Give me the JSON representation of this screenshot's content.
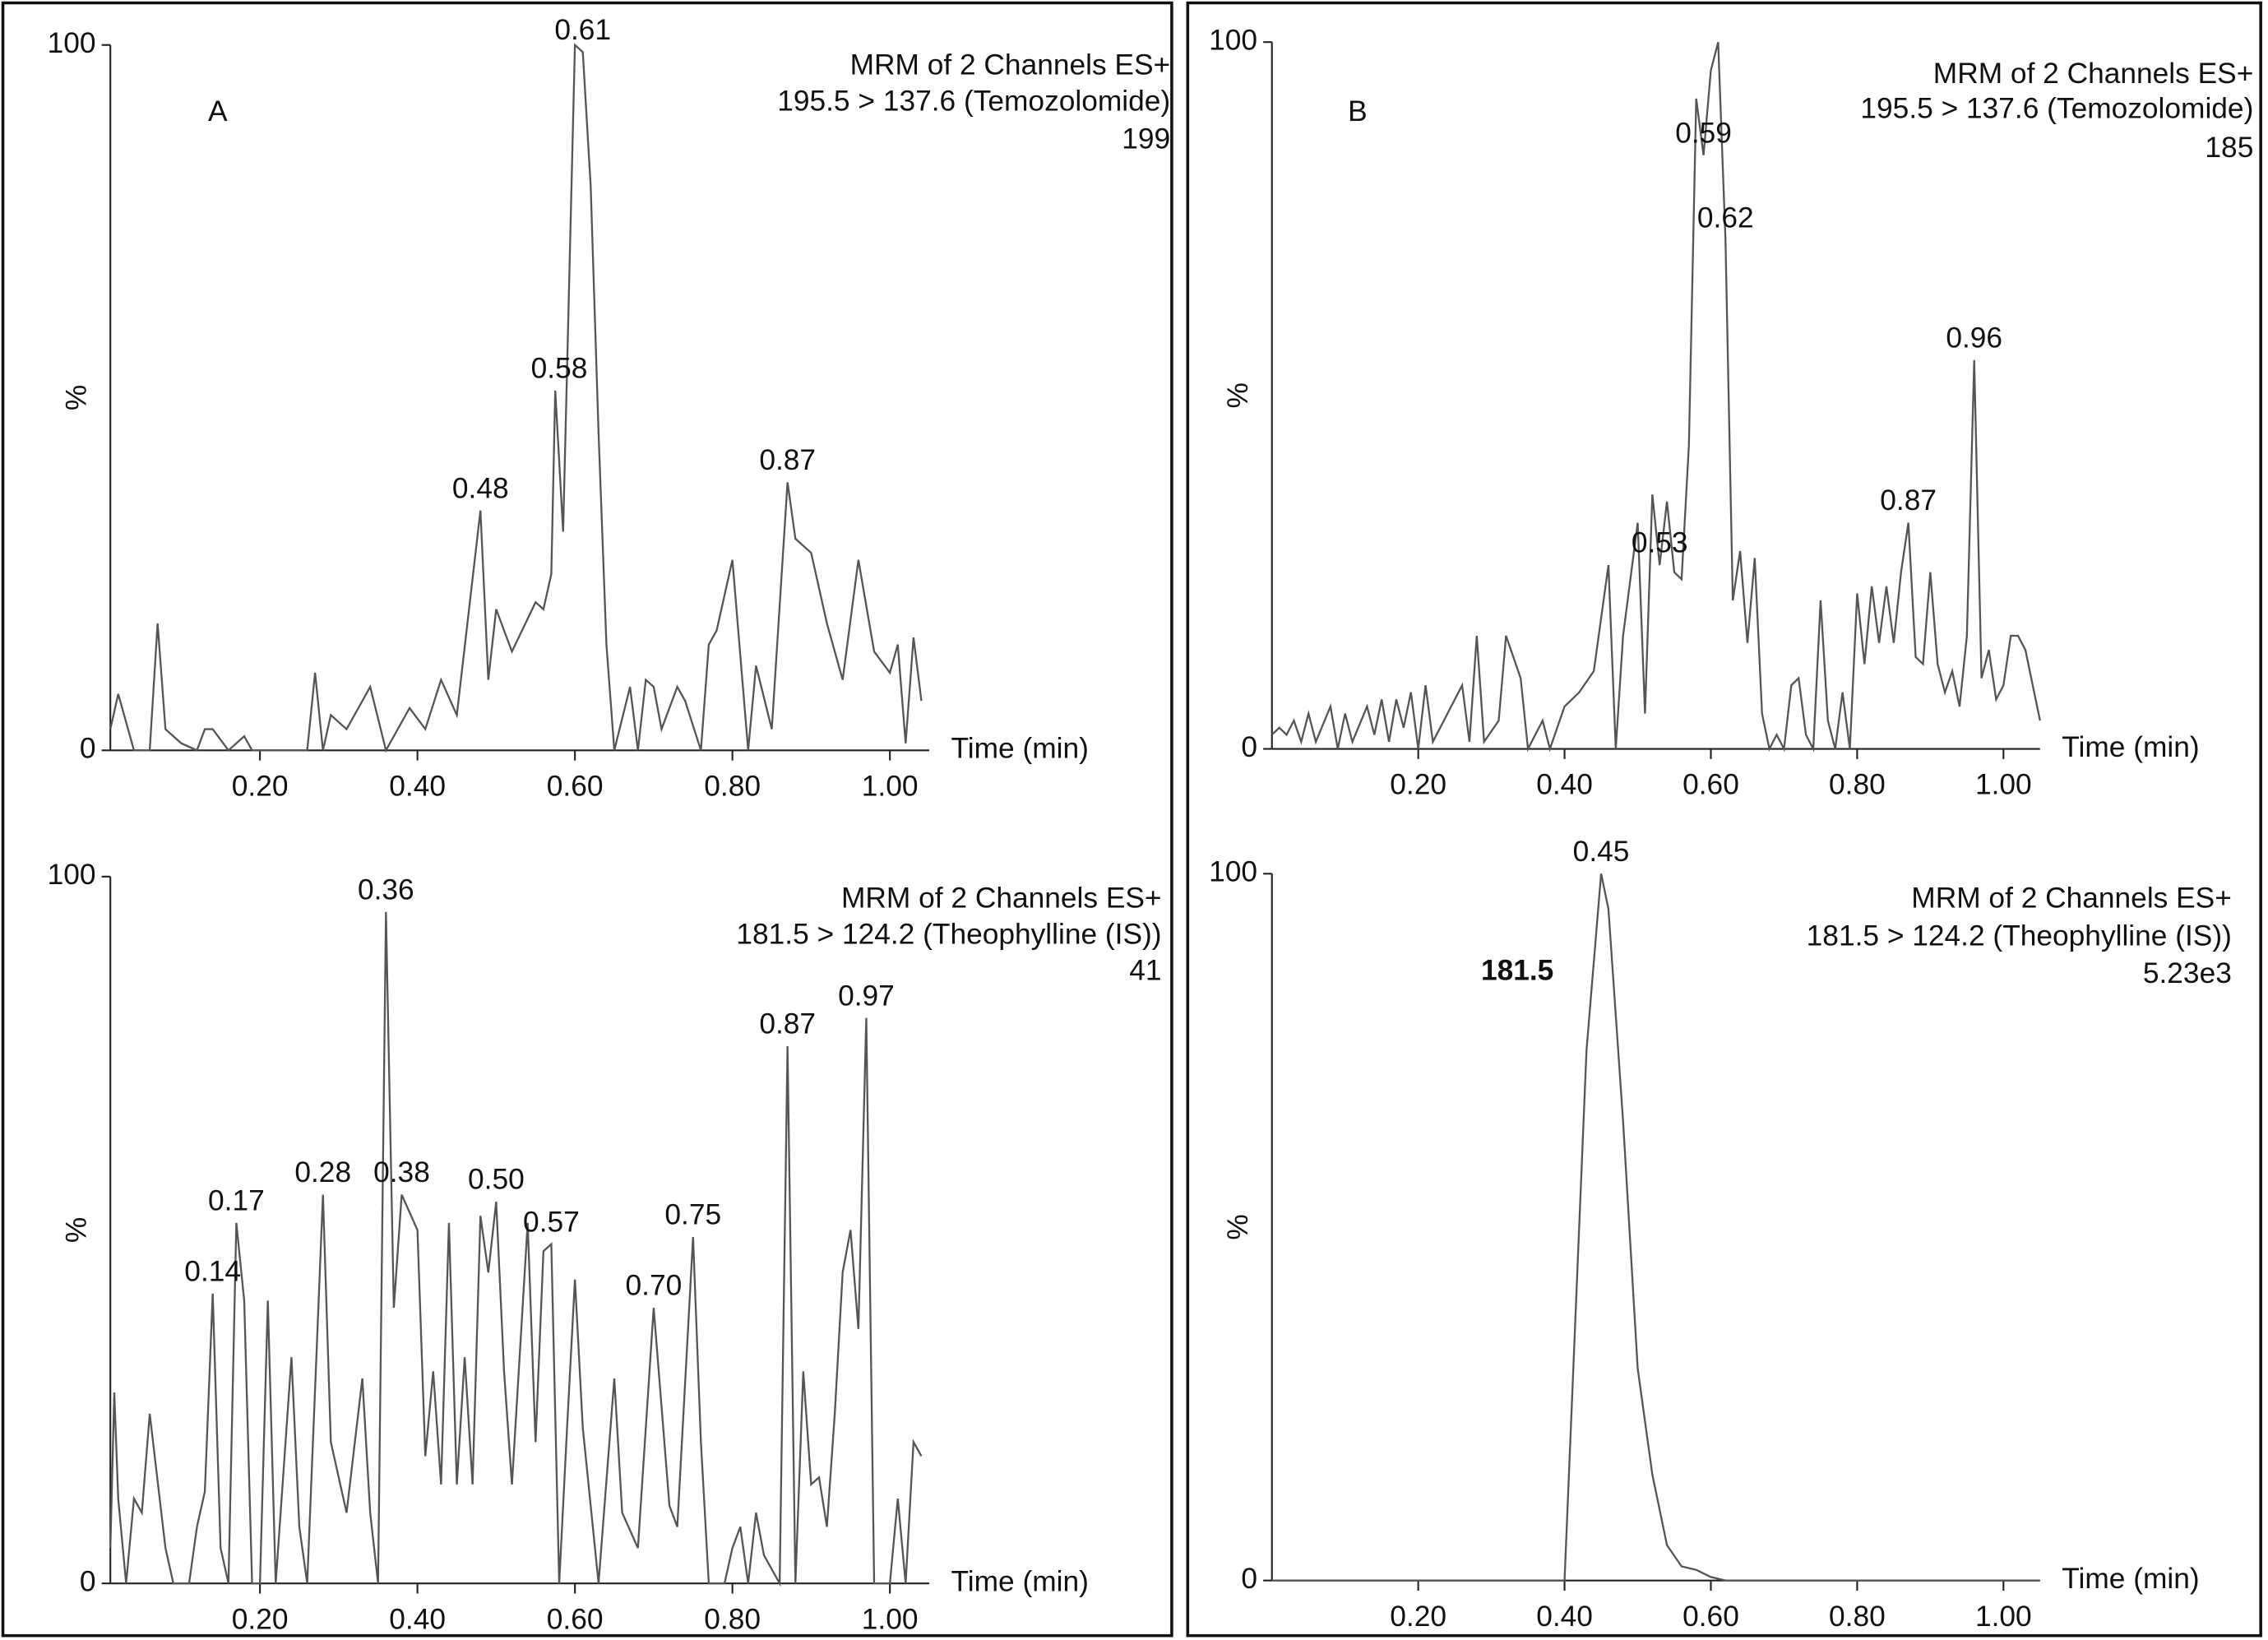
{
  "chart_data": [
    {
      "type": "line",
      "panel_label": "A",
      "info": [
        "MRM of 2 Channels ES+",
        "195.5 > 137.6 (Temozolomide)",
        "199"
      ],
      "xlabel": "Time (min)",
      "ylabel": "%",
      "xlim": [
        0.01,
        1.05
      ],
      "ylim": [
        0,
        100
      ],
      "xticks": [
        {
          "value": 0.2,
          "label": "0.20"
        },
        {
          "value": 0.4,
          "label": "0.40"
        },
        {
          "value": 0.6,
          "label": "0.60"
        },
        {
          "value": 0.8,
          "label": "0.80"
        },
        {
          "value": 1.0,
          "label": "1.00"
        }
      ],
      "yticks": [
        0,
        100
      ],
      "color": "#555555",
      "x": [
        0.01,
        0.02,
        0.04,
        0.06,
        0.07,
        0.08,
        0.1,
        0.12,
        0.13,
        0.14,
        0.16,
        0.18,
        0.19,
        0.26,
        0.27,
        0.28,
        0.29,
        0.31,
        0.34,
        0.36,
        0.39,
        0.41,
        0.43,
        0.45,
        0.48,
        0.49,
        0.5,
        0.52,
        0.55,
        0.56,
        0.57,
        0.575,
        0.585,
        0.6,
        0.61,
        0.62,
        0.63,
        0.64,
        0.65,
        0.67,
        0.68,
        0.69,
        0.7,
        0.71,
        0.73,
        0.74,
        0.76,
        0.77,
        0.78,
        0.8,
        0.82,
        0.83,
        0.85,
        0.87,
        0.88,
        0.9,
        0.92,
        0.94,
        0.96,
        0.98,
        1.0,
        1.01,
        1.02,
        1.03,
        1.04
      ],
      "values": [
        3,
        8,
        0,
        0,
        18,
        3,
        1,
        0,
        3,
        3,
        0,
        2,
        0,
        0,
        11,
        0,
        5,
        3,
        9,
        0,
        6,
        3,
        10,
        5,
        34,
        10,
        20,
        14,
        21,
        20,
        25,
        51,
        31,
        100,
        99,
        80,
        45,
        15,
        0,
        9,
        0,
        10,
        9,
        3,
        9,
        7,
        0,
        15,
        17,
        27,
        0,
        12,
        3,
        38,
        30,
        28,
        18,
        10,
        27,
        14,
        11,
        15,
        1,
        16,
        7
      ],
      "annotations": [
        {
          "value": 0.48,
          "label": "0.48"
        },
        {
          "value": 0.58,
          "label": "0.58"
        },
        {
          "value": 0.61,
          "label": "0.61"
        },
        {
          "value": 0.87,
          "label": "0.87"
        }
      ]
    },
    {
      "type": "line",
      "info": [
        "MRM of 2 Channels ES+",
        "181.5 > 124.2 (Theophylline (IS))",
        "41"
      ],
      "xlabel": "Time (min)",
      "ylabel": "%",
      "xlim": [
        0.01,
        1.05
      ],
      "ylim": [
        0,
        100
      ],
      "xticks": [
        {
          "value": 0.2,
          "label": "0.20"
        },
        {
          "value": 0.4,
          "label": "0.40"
        },
        {
          "value": 0.6,
          "label": "0.60"
        },
        {
          "value": 0.8,
          "label": "0.80"
        },
        {
          "value": 1.0,
          "label": "1.00"
        }
      ],
      "yticks": [
        0,
        100
      ],
      "color": "#555555",
      "x": [
        0.01,
        0.015,
        0.02,
        0.03,
        0.04,
        0.05,
        0.06,
        0.08,
        0.09,
        0.11,
        0.12,
        0.13,
        0.14,
        0.15,
        0.16,
        0.17,
        0.18,
        0.19,
        0.2,
        0.21,
        0.22,
        0.24,
        0.25,
        0.26,
        0.28,
        0.29,
        0.31,
        0.33,
        0.34,
        0.35,
        0.36,
        0.37,
        0.38,
        0.4,
        0.41,
        0.42,
        0.43,
        0.44,
        0.45,
        0.46,
        0.47,
        0.48,
        0.49,
        0.5,
        0.51,
        0.52,
        0.54,
        0.55,
        0.56,
        0.57,
        0.58,
        0.59,
        0.6,
        0.61,
        0.63,
        0.65,
        0.66,
        0.68,
        0.7,
        0.71,
        0.72,
        0.73,
        0.75,
        0.76,
        0.77,
        0.79,
        0.8,
        0.81,
        0.82,
        0.83,
        0.84,
        0.86,
        0.87,
        0.88,
        0.89,
        0.9,
        0.91,
        0.92,
        0.93,
        0.94,
        0.95,
        0.96,
        0.97,
        0.98,
        1.0,
        1.01,
        1.02,
        1.03,
        1.04
      ],
      "values": [
        5,
        27,
        12,
        0,
        12,
        10,
        24,
        5,
        0,
        0,
        8,
        13,
        41,
        5,
        0,
        51,
        40,
        0,
        0,
        40,
        0,
        32,
        8,
        0,
        55,
        20,
        10,
        29,
        10,
        0,
        95,
        39,
        55,
        50,
        18,
        30,
        14,
        51,
        14,
        32,
        14,
        52,
        44,
        54,
        30,
        14,
        51,
        20,
        47,
        48,
        0,
        22,
        43,
        22,
        0,
        29,
        10,
        5,
        39,
        25,
        11,
        8,
        49,
        20,
        0,
        0,
        5,
        8,
        0,
        10,
        4,
        0,
        76,
        0,
        30,
        14,
        15,
        8,
        24,
        44,
        50,
        36,
        80,
        0,
        0,
        12,
        0,
        20,
        18
      ],
      "annotations": [
        {
          "value": 0.14,
          "label": "0.14"
        },
        {
          "value": 0.17,
          "label": "0.17"
        },
        {
          "value": 0.28,
          "label": "0.28"
        },
        {
          "value": 0.36,
          "label": "0.36"
        },
        {
          "value": 0.38,
          "label": "0.38"
        },
        {
          "value": 0.5,
          "label": "0.50"
        },
        {
          "value": 0.57,
          "label": "0.57"
        },
        {
          "value": 0.7,
          "label": "0.70"
        },
        {
          "value": 0.75,
          "label": "0.75"
        },
        {
          "value": 0.87,
          "label": "0.87"
        },
        {
          "value": 0.97,
          "label": "0.97"
        }
      ]
    },
    {
      "type": "line",
      "panel_label": "B",
      "info": [
        "MRM of 2 Channels ES+",
        "195.5 > 137.6 (Temozolomide)",
        "185"
      ],
      "xlabel": "Time (min)",
      "ylabel": "%",
      "xlim": [
        0,
        1.05
      ],
      "ylim": [
        0,
        100
      ],
      "xticks": [
        {
          "value": 0.2,
          "label": "0.20"
        },
        {
          "value": 0.4,
          "label": "0.40"
        },
        {
          "value": 0.6,
          "label": "0.60"
        },
        {
          "value": 0.8,
          "label": "0.80"
        },
        {
          "value": 1.0,
          "label": "1.00"
        }
      ],
      "yticks": [
        0,
        100
      ],
      "color": "#555555",
      "x": [
        0.0,
        0.01,
        0.02,
        0.03,
        0.04,
        0.05,
        0.06,
        0.08,
        0.09,
        0.1,
        0.11,
        0.13,
        0.14,
        0.15,
        0.16,
        0.17,
        0.18,
        0.19,
        0.2,
        0.21,
        0.22,
        0.25,
        0.26,
        0.27,
        0.28,
        0.29,
        0.31,
        0.32,
        0.34,
        0.35,
        0.37,
        0.38,
        0.4,
        0.42,
        0.44,
        0.46,
        0.47,
        0.48,
        0.5,
        0.51,
        0.52,
        0.53,
        0.54,
        0.55,
        0.56,
        0.57,
        0.58,
        0.59,
        0.6,
        0.61,
        0.62,
        0.63,
        0.64,
        0.65,
        0.66,
        0.67,
        0.68,
        0.69,
        0.7,
        0.71,
        0.72,
        0.73,
        0.74,
        0.75,
        0.76,
        0.77,
        0.78,
        0.79,
        0.8,
        0.81,
        0.82,
        0.83,
        0.84,
        0.85,
        0.86,
        0.87,
        0.88,
        0.89,
        0.9,
        0.91,
        0.92,
        0.93,
        0.94,
        0.95,
        0.96,
        0.97,
        0.98,
        0.99,
        1.0,
        1.01,
        1.02,
        1.03,
        1.04,
        1.05
      ],
      "values": [
        2,
        3,
        2,
        4,
        1,
        5,
        1,
        6,
        0,
        5,
        1,
        6,
        2,
        7,
        1,
        7,
        3,
        8,
        0,
        9,
        1,
        7,
        9,
        1,
        16,
        1,
        4,
        16,
        10,
        0,
        4,
        0,
        6,
        8,
        11,
        26,
        0,
        16,
        32,
        5,
        36,
        26,
        35,
        25,
        24,
        43,
        92,
        84,
        96,
        100,
        72,
        21,
        28,
        15,
        27,
        5,
        0,
        2,
        0,
        9,
        10,
        2,
        0,
        21,
        4,
        0,
        8,
        0,
        22,
        12,
        23,
        15,
        23,
        15,
        25,
        32,
        13,
        12,
        25,
        12,
        8,
        11,
        6,
        16,
        55,
        10,
        14,
        7,
        9,
        16,
        16,
        14,
        9,
        4
      ],
      "annotations": [
        {
          "value": 0.53,
          "label": "0.53"
        },
        {
          "value": 0.59,
          "label": "0.59"
        },
        {
          "value": 0.62,
          "label": "0.62"
        },
        {
          "value": 0.87,
          "label": "0.87"
        },
        {
          "value": 0.96,
          "label": "0.96"
        }
      ]
    },
    {
      "type": "line",
      "info": [
        "MRM of 2 Channels ES+",
        "181.5 > 124.2 (Theophylline (IS))",
        "5.23e3"
      ],
      "compound_label": "181.5",
      "xlabel": "Time (min)",
      "ylabel": "%",
      "xlim": [
        0,
        1.05
      ],
      "ylim": [
        0,
        100
      ],
      "xticks": [
        {
          "value": 0.2,
          "label": "0.20"
        },
        {
          "value": 0.4,
          "label": "0.40"
        },
        {
          "value": 0.6,
          "label": "0.60"
        },
        {
          "value": 0.8,
          "label": "0.80"
        },
        {
          "value": 1.0,
          "label": "1.00"
        }
      ],
      "yticks": [
        0,
        100
      ],
      "color": "#555555",
      "x": [
        0.0,
        0.1,
        0.2,
        0.3,
        0.39,
        0.4,
        0.41,
        0.43,
        0.45,
        0.46,
        0.48,
        0.5,
        0.52,
        0.54,
        0.56,
        0.58,
        0.6,
        0.62,
        0.8,
        1.05
      ],
      "values": [
        0,
        0,
        0,
        0,
        0,
        0,
        25,
        75,
        100,
        95,
        65,
        30,
        15,
        5,
        2,
        1.5,
        0.5,
        0,
        0,
        0
      ],
      "annotations": [
        {
          "value": 0.45,
          "label": "0.45"
        }
      ]
    }
  ]
}
